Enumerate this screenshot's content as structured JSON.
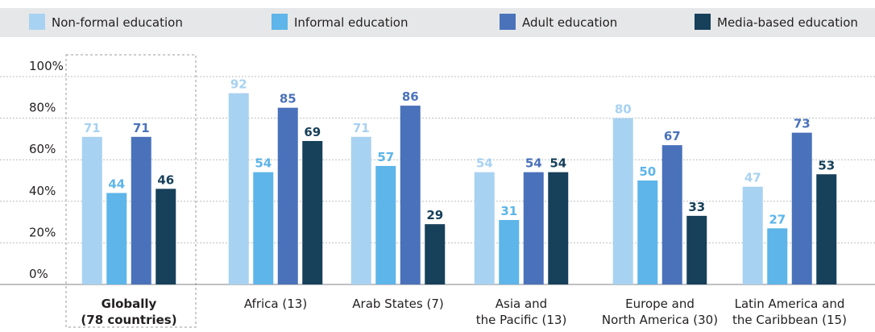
{
  "chart_data": {
    "type": "bar",
    "categories": [
      [
        "Globally",
        "(78 countries)"
      ],
      [
        "Africa (13)"
      ],
      [
        "Arab States (7)"
      ],
      [
        "Asia and",
        "the Pacific (13)"
      ],
      [
        "Europe and",
        "North America (30)"
      ],
      [
        "Latin America and",
        "the Caribbean (15)"
      ]
    ],
    "series": [
      {
        "name": "Non-formal education",
        "color": "#a8d2f1",
        "values": [
          71,
          92,
          71,
          54,
          80,
          47
        ]
      },
      {
        "name": "Informal education",
        "color": "#5db5e9",
        "values": [
          44,
          54,
          57,
          31,
          50,
          27
        ]
      },
      {
        "name": "Adult education",
        "color": "#4a72bb",
        "values": [
          71,
          85,
          86,
          54,
          67,
          73
        ]
      },
      {
        "name": "Media-based education",
        "color": "#17405a",
        "values": [
          46,
          69,
          29,
          54,
          33,
          53
        ]
      }
    ],
    "ylim": [
      0,
      100
    ],
    "yticks": [
      {
        "value": 0,
        "label": "0%"
      },
      {
        "value": 20,
        "label": "20%"
      },
      {
        "value": 40,
        "label": "40%"
      },
      {
        "value": 60,
        "label": "60%"
      },
      {
        "value": 80,
        "label": "80%"
      },
      {
        "value": 100,
        "label": "100%"
      }
    ],
    "grid": true
  }
}
